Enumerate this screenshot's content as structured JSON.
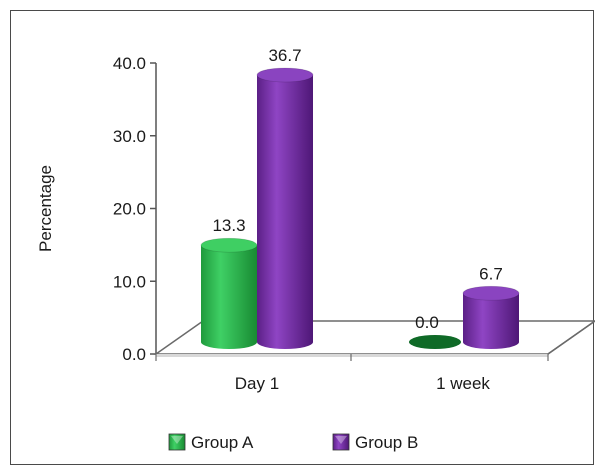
{
  "chart_data": {
    "type": "bar",
    "title": "",
    "xlabel": "",
    "ylabel": "Percentage",
    "ylim": [
      0,
      40
    ],
    "yticks": [
      "0.0",
      "10.0",
      "20.0",
      "30.0",
      "40.0"
    ],
    "categories": [
      "Day 1",
      "1 week"
    ],
    "series": [
      {
        "name": "Group A",
        "values": [
          13.3,
          0.0
        ],
        "labels": [
          "13.3",
          "0.0"
        ],
        "color": "#2fb84e"
      },
      {
        "name": "Group B",
        "values": [
          36.7,
          6.7
        ],
        "labels": [
          "36.7",
          "6.7"
        ],
        "color": "#7a2fa8"
      }
    ],
    "legend_position": "bottom",
    "grid": false,
    "style": "3d-cylinder"
  }
}
